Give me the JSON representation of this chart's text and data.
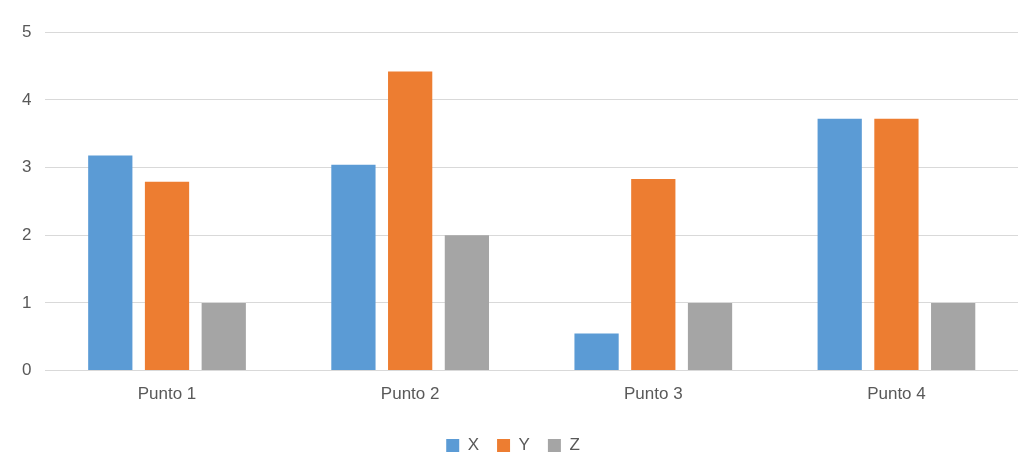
{
  "chart_data": {
    "type": "bar",
    "categories": [
      "Punto 1",
      "Punto 2",
      "Punto 3",
      "Punto 4"
    ],
    "series": [
      {
        "name": "X",
        "color": "#5b9bd5",
        "values": [
          3.18,
          3.04,
          0.55,
          3.72
        ]
      },
      {
        "name": "Y",
        "color": "#ed7d31",
        "values": [
          2.79,
          4.42,
          2.83,
          3.72
        ]
      },
      {
        "name": "Z",
        "color": "#a5a5a5",
        "values": [
          1,
          2,
          1,
          1
        ]
      }
    ],
    "ylim": [
      0,
      5
    ],
    "yticks": [
      0,
      1,
      2,
      3,
      4,
      5
    ],
    "grid": "y",
    "legend": "bottom"
  }
}
